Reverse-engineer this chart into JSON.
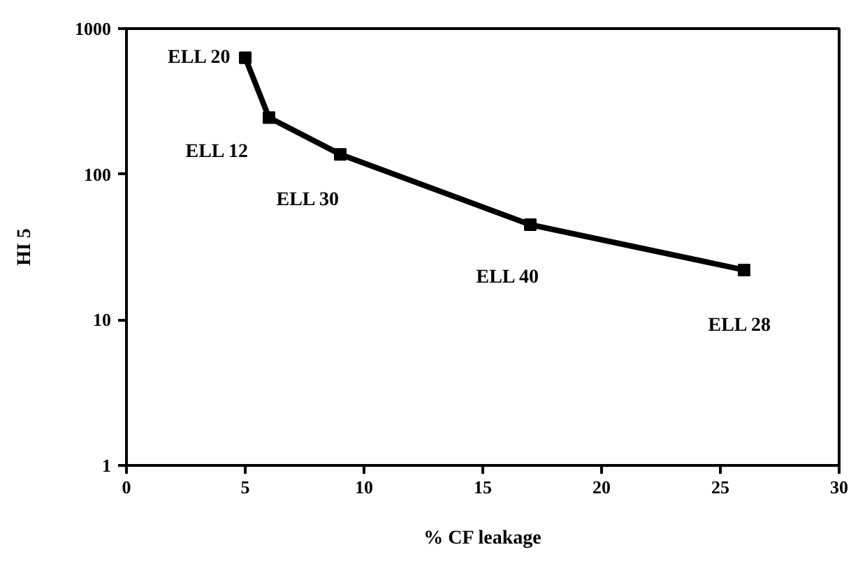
{
  "chart_data": {
    "type": "line",
    "xlabel": "% CF leakage",
    "ylabel": "HI 5",
    "x": [
      5,
      6,
      9,
      17,
      26
    ],
    "series": [
      {
        "color": "#000000",
        "values": [
          630,
          245,
          137,
          45,
          22
        ]
      }
    ],
    "log": "y",
    "xlim": [
      0,
      30
    ],
    "xticks": [
      0,
      5,
      10,
      15,
      20,
      25,
      30
    ],
    "ylim": [
      1,
      1000
    ],
    "yticks": [
      1,
      10,
      100,
      1000
    ],
    "grid": false,
    "marker": "square",
    "line_style": "solid",
    "annotations": [
      {
        "text": "ELL 20",
        "x": 5,
        "y": 630
      },
      {
        "text": "ELL 12",
        "x": 6,
        "y": 245
      },
      {
        "text": "ELL 30",
        "x": 9,
        "y": 137
      },
      {
        "text": "ELL 40",
        "x": 17,
        "y": 45
      },
      {
        "text": "ELL 28",
        "x": 26,
        "y": 22
      }
    ]
  }
}
